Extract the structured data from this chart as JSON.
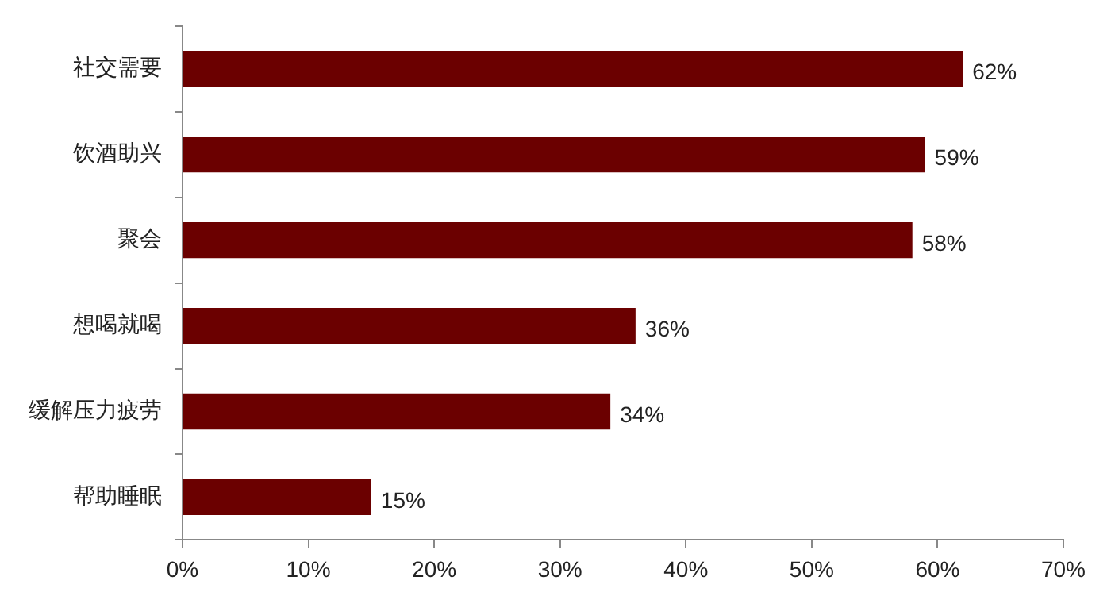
{
  "chart_data": {
    "type": "bar",
    "orientation": "horizontal",
    "categories": [
      "社交需要",
      "饮酒助兴",
      "聚会",
      "想喝就喝",
      "缓解压力疲劳",
      "帮助睡眠"
    ],
    "values": [
      62,
      59,
      58,
      36,
      34,
      15
    ],
    "color": "#6b0000",
    "value_labels": [
      "62%",
      "59%",
      "58%",
      "36%",
      "34%",
      "15%"
    ],
    "xlim": [
      0,
      70
    ],
    "xticks": [
      {
        "value": 0,
        "label": "0%"
      },
      {
        "value": 10,
        "label": "10%"
      },
      {
        "value": 20,
        "label": "20%"
      },
      {
        "value": 30,
        "label": "30%"
      },
      {
        "value": 40,
        "label": "40%"
      },
      {
        "value": 50,
        "label": "50%"
      },
      {
        "value": 60,
        "label": "60%"
      },
      {
        "value": 70,
        "label": "70%"
      }
    ],
    "grid": false,
    "legend": false
  }
}
